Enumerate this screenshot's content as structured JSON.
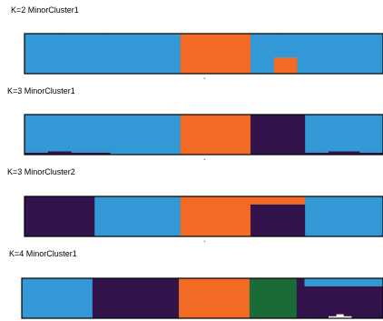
{
  "chart_data": [
    {
      "type": "bar",
      "title": "K=2  MinorCluster1",
      "stacked": true,
      "normalized": true,
      "xlabel": "",
      "ylabel": "",
      "tick_label": "`",
      "ylim": [
        0,
        1
      ],
      "grid": false,
      "legend": "none",
      "series": [
        {
          "color": "#3399d6",
          "values": [
            1,
            1,
            1,
            1,
            1,
            1,
            1,
            1,
            1,
            1,
            1,
            1,
            1,
            1,
            1,
            1,
            1,
            1,
            1,
            1,
            0,
            0,
            0,
            0,
            0,
            0,
            0,
            0,
            0,
            1,
            1,
            1,
            0.6,
            0.6,
            0.6,
            1,
            1,
            1,
            1,
            1,
            1,
            1,
            1,
            1,
            1,
            1
          ]
        },
        {
          "color": "#f26a24",
          "values": [
            0,
            0,
            0,
            0,
            0,
            0,
            0,
            0,
            0,
            0,
            0,
            0,
            0,
            0,
            0,
            0,
            0,
            0,
            0,
            0,
            1,
            1,
            1,
            1,
            1,
            1,
            1,
            1,
            1,
            0,
            0,
            0,
            0.4,
            0.4,
            0.4,
            0,
            0,
            0,
            0,
            0,
            0,
            0,
            0,
            0,
            0,
            0
          ]
        }
      ]
    },
    {
      "type": "bar",
      "title": "K=3   MinorCluster1",
      "stacked": true,
      "normalized": true,
      "xlabel": "",
      "ylabel": "",
      "tick_label": "`",
      "ylim": [
        0,
        1
      ],
      "grid": false,
      "legend": "none",
      "series": [
        {
          "color": "#3399d6",
          "values": [
            0.95,
            0.95,
            0.95,
            0.92,
            0.92,
            0.92,
            0.95,
            0.95,
            0.95,
            0.95,
            0.95,
            1,
            1,
            1,
            1,
            1,
            1,
            1,
            1,
            1,
            0,
            0,
            0,
            0,
            0,
            0,
            0,
            0,
            0,
            0,
            0,
            0,
            0,
            0,
            0,
            0,
            0.95,
            0.95,
            0.95,
            0.92,
            0.92,
            0.92,
            0.92,
            0.95,
            0.95,
            0.95
          ]
        },
        {
          "color": "#f26a24",
          "values": [
            0,
            0,
            0,
            0,
            0,
            0,
            0,
            0,
            0,
            0,
            0,
            0,
            0,
            0,
            0,
            0,
            0,
            0,
            0,
            0,
            1,
            1,
            1,
            1,
            1,
            1,
            1,
            1,
            1,
            0,
            0,
            0,
            0,
            0,
            0,
            0,
            0,
            0,
            0,
            0,
            0,
            0,
            0,
            0,
            0,
            0
          ]
        },
        {
          "color": "#33134b",
          "values": [
            0.05,
            0.05,
            0.05,
            0.08,
            0.08,
            0.08,
            0.05,
            0.05,
            0.05,
            0.05,
            0.05,
            0,
            0,
            0,
            0,
            0,
            0,
            0,
            0,
            0,
            0,
            0,
            0,
            0,
            0,
            0,
            0,
            0,
            0,
            1,
            1,
            1,
            1,
            1,
            1,
            1,
            0.05,
            0.05,
            0.05,
            0.08,
            0.08,
            0.08,
            0.08,
            0.05,
            0.05,
            0.05
          ]
        }
      ]
    },
    {
      "type": "bar",
      "title": "K=3    MinorCluster2",
      "stacked": true,
      "normalized": true,
      "xlabel": "",
      "ylabel": "",
      "tick_label": "`",
      "ylim": [
        0,
        1
      ],
      "grid": false,
      "legend": "none",
      "series": [
        {
          "color": "#f26a24",
          "values": [
            0,
            0,
            0,
            0,
            0,
            0,
            0,
            0,
            0,
            0,
            0,
            0,
            0,
            0,
            0,
            0,
            0,
            0,
            0,
            0,
            1,
            1,
            1,
            1,
            1,
            1,
            1,
            1,
            1,
            0.2,
            0.2,
            0.2,
            0.2,
            0.2,
            0.2,
            0.2,
            0,
            0,
            0,
            0,
            0,
            0,
            0,
            0,
            0,
            0
          ]
        },
        {
          "color": "#33134b",
          "values": [
            1,
            1,
            1,
            1,
            1,
            1,
            1,
            1,
            1,
            0,
            0,
            0,
            0,
            0,
            0,
            0,
            0,
            0,
            0,
            0,
            0,
            0,
            0,
            0,
            0,
            0,
            0,
            0,
            0,
            0.8,
            0.8,
            0.8,
            0.8,
            0.8,
            0.8,
            0.8,
            0,
            0,
            0,
            0,
            0,
            0,
            0,
            0,
            0,
            0
          ]
        },
        {
          "color": "#3399d6",
          "values": [
            0,
            0,
            0,
            0,
            0,
            0,
            0,
            0,
            0,
            1,
            1,
            1,
            1,
            1,
            1,
            1,
            1,
            1,
            1,
            1,
            0,
            0,
            0,
            0,
            0,
            0,
            0,
            0,
            0,
            0,
            0,
            0,
            0,
            0,
            0,
            0,
            1,
            1,
            1,
            1,
            1,
            1,
            1,
            1,
            1,
            1
          ]
        }
      ]
    },
    {
      "type": "bar",
      "title": "K=4    MinorCluster1",
      "stacked": true,
      "normalized": true,
      "xlabel": "",
      "ylabel": "",
      "tick_label": "",
      "ylim": [
        0,
        1
      ],
      "grid": false,
      "legend": "none",
      "series": [
        {
          "color": "#3399d6",
          "values": [
            1,
            1,
            1,
            1,
            1,
            1,
            1,
            1,
            1,
            0,
            0,
            0,
            0,
            0,
            0,
            0,
            0,
            0,
            0,
            0,
            0,
            0,
            0,
            0,
            0,
            0,
            0,
            0,
            0,
            0,
            0,
            0,
            0,
            0,
            0,
            0,
            0.2,
            0.2,
            0.2,
            0.2,
            0.2,
            0.2,
            0.2,
            0.2,
            0.2,
            0.2
          ]
        },
        {
          "color": "#f26a24",
          "values": [
            0,
            0,
            0,
            0,
            0,
            0,
            0,
            0,
            0,
            0,
            0,
            0,
            0,
            0,
            0,
            0,
            0,
            0,
            0,
            0,
            1,
            1,
            1,
            1,
            1,
            1,
            1,
            1,
            1,
            0,
            0,
            0,
            0,
            0,
            0,
            0,
            0,
            0,
            0,
            0,
            0,
            0,
            0,
            0,
            0,
            0
          ]
        },
        {
          "color": "#1b6b39",
          "values": [
            0,
            0,
            0,
            0,
            0,
            0,
            0,
            0,
            0,
            0,
            0,
            0,
            0,
            0,
            0,
            0,
            0,
            0,
            0,
            0,
            0,
            0,
            0,
            0,
            0,
            0,
            0,
            0,
            0,
            1,
            1,
            1,
            1,
            1,
            1,
            0,
            0,
            0,
            0,
            0,
            0,
            0,
            0,
            0,
            0,
            0
          ]
        },
        {
          "color": "#33134b",
          "values": [
            0,
            0,
            0,
            0,
            0,
            0,
            0,
            0,
            0,
            1,
            1,
            1,
            1,
            1,
            1,
            1,
            1,
            1,
            1,
            1,
            0,
            0,
            0,
            0,
            0,
            0,
            0,
            0,
            0,
            0,
            0,
            0,
            0,
            0,
            0,
            1,
            0.8,
            0.8,
            0.8,
            0.75,
            0.7,
            0.75,
            0.8,
            0.8,
            0.8,
            0.8
          ]
        }
      ]
    }
  ]
}
